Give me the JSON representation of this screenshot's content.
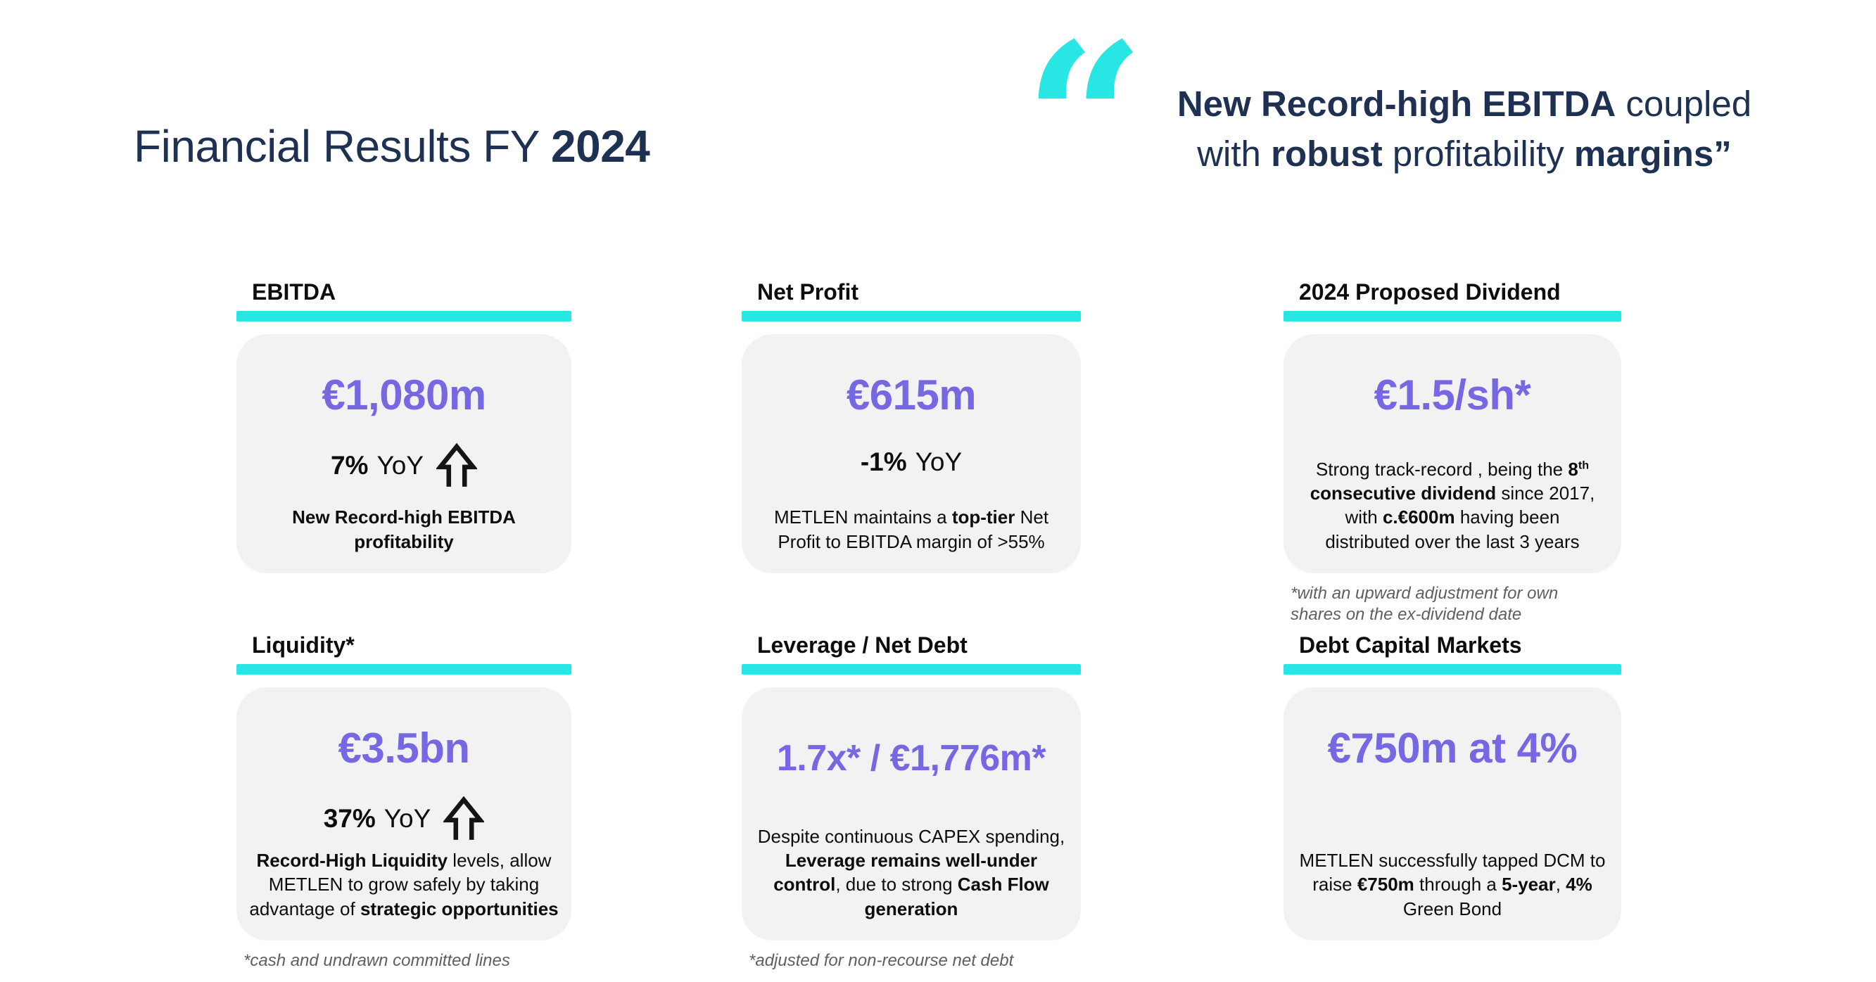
{
  "colors": {
    "navy": "#1f3152",
    "purple": "#7668e2",
    "cyan": "#27e6e3",
    "card_bg": "#f2f2f2",
    "footnote_gray": "#5f5f5f"
  },
  "title": {
    "prefix": "Financial Results FY ",
    "year": "2024"
  },
  "quote": {
    "mark": "“",
    "lines": [
      [
        {
          "t": "New Record-high EBITDA",
          "b": true
        },
        {
          "t": " coupled"
        }
      ],
      [
        {
          "t": "with "
        },
        {
          "t": "robust",
          "b": true
        },
        {
          "t": " profitability "
        },
        {
          "t": "margins”",
          "b": true
        }
      ]
    ]
  },
  "cards": [
    {
      "header": "EBITDA",
      "value": "€1,080m",
      "yoy": {
        "pct": "7%",
        "label": "YoY",
        "arrow": true
      },
      "desc": [
        {
          "t": "New Record-high EBITDA profitability",
          "b": true
        }
      ],
      "footnote": ""
    },
    {
      "header": "Net Profit",
      "value": "€615m",
      "yoy": {
        "pct": "-1%",
        "label": "YoY",
        "arrow": false
      },
      "desc": [
        {
          "t": "METLEN maintains a "
        },
        {
          "t": "top-tier",
          "b": true
        },
        {
          "t": " Net Profit to EBITDA margin of >55%"
        }
      ],
      "footnote": ""
    },
    {
      "header": "2024 Proposed Dividend",
      "value": "€1.5/sh*",
      "yoy": null,
      "desc": [
        {
          "t": "Strong track-record , being the "
        },
        {
          "t": "8",
          "b": true
        },
        {
          "t": "th",
          "b": true,
          "sup": true
        },
        {
          "t": " "
        },
        {
          "t": "consecutive dividend",
          "b": true
        },
        {
          "t": " since 2017, with "
        },
        {
          "t": "c.€600m",
          "b": true
        },
        {
          "t": " having been distributed over the last 3 years"
        }
      ],
      "footnote": "*with an upward adjustment for own shares on the ex-dividend date"
    },
    {
      "header": "Liquidity*",
      "value": "€3.5bn",
      "yoy": {
        "pct": "37%",
        "label": "YoY",
        "arrow": true
      },
      "desc": [
        {
          "t": "Record-High Liquidity",
          "b": true
        },
        {
          "t": " levels, allow METLEN to grow safely by taking advantage of "
        },
        {
          "t": "strategic opportunities",
          "b": true
        }
      ],
      "footnote": "*cash and undrawn committed lines"
    },
    {
      "header": "Leverage / Net Debt",
      "value": "1.7x* / €1,776m*",
      "yoy": null,
      "desc": [
        {
          "t": "Despite continuous CAPEX spending, "
        },
        {
          "t": "Leverage remains well-under control",
          "b": true
        },
        {
          "t": ", due to strong "
        },
        {
          "t": "Cash Flow generation",
          "b": true
        }
      ],
      "footnote": "*adjusted for non-recourse net debt"
    },
    {
      "header": "Debt Capital Markets",
      "value": "€750m at 4%",
      "yoy": null,
      "desc": [
        {
          "t": "METLEN successfully tapped DCM to raise "
        },
        {
          "t": "€750m",
          "b": true
        },
        {
          "t": " through a "
        },
        {
          "t": "5-year",
          "b": true
        },
        {
          "t": ", "
        },
        {
          "t": "4%",
          "b": true
        },
        {
          "t": " Green Bond"
        }
      ],
      "footnote": ""
    }
  ]
}
